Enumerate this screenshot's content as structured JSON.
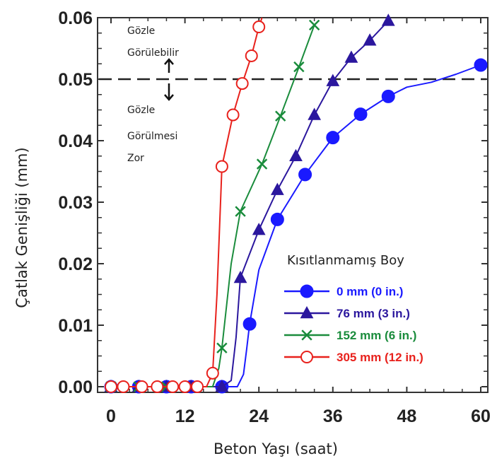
{
  "chart_data": {
    "type": "line",
    "xlabel": "Beton Yaşı (saat)",
    "ylabel": "Çatlak Genişliği (mm)",
    "xlim": [
      0,
      60
    ],
    "ylim": [
      0,
      0.06
    ],
    "xticks": [
      0,
      12,
      24,
      36,
      48,
      60
    ],
    "yticks": [
      0.0,
      0.01,
      0.02,
      0.03,
      0.04,
      0.05,
      0.06
    ],
    "xtick_labels": [
      "0",
      "12",
      "24",
      "36",
      "48",
      "60"
    ],
    "ytick_labels": [
      "0.00",
      "0.01",
      "0.02",
      "0.03",
      "0.04",
      "0.05",
      "0.06"
    ],
    "threshold": {
      "y": 0.05,
      "style": "dashed"
    },
    "annotations": {
      "above": [
        "Gözle",
        "Görülebilir"
      ],
      "below": [
        "Gözle",
        "Görülmesi",
        "Zor"
      ]
    },
    "legend": {
      "title": "Kısıtlanmamış Boy",
      "placement": "bottom-right"
    },
    "series": [
      {
        "name": "0 mm (0 in.)",
        "color": "#1a1aff",
        "marker": "circle-filled",
        "markers": [
          [
            0,
            0
          ],
          [
            4.5,
            0
          ],
          [
            9,
            0
          ],
          [
            13,
            0
          ],
          [
            18,
            0
          ],
          [
            22.5,
            0.0102
          ],
          [
            27,
            0.0272
          ],
          [
            31.5,
            0.0345
          ],
          [
            36,
            0.0405
          ],
          [
            40.5,
            0.0443
          ],
          [
            45,
            0.0472
          ],
          [
            60,
            0.0523
          ]
        ],
        "curve": [
          [
            0,
            0
          ],
          [
            18,
            0
          ],
          [
            20.5,
            0
          ],
          [
            21.5,
            0.002
          ],
          [
            22,
            0.006
          ],
          [
            22.5,
            0.0102
          ],
          [
            24,
            0.019
          ],
          [
            27,
            0.0272
          ],
          [
            31.5,
            0.0345
          ],
          [
            36,
            0.0405
          ],
          [
            40.5,
            0.0443
          ],
          [
            45,
            0.0472
          ],
          [
            48,
            0.0487
          ],
          [
            52,
            0.0495
          ],
          [
            56,
            0.0508
          ],
          [
            60,
            0.0523
          ]
        ]
      },
      {
        "name": "76 mm (3 in.)",
        "color": "#2b179e",
        "marker": "triangle-filled",
        "markers": [
          [
            0,
            0
          ],
          [
            4.5,
            0
          ],
          [
            9,
            0
          ],
          [
            13,
            0
          ],
          [
            18,
            0
          ],
          [
            21,
            0.0177
          ],
          [
            24,
            0.0255
          ],
          [
            27,
            0.032
          ],
          [
            30,
            0.0375
          ],
          [
            33,
            0.0442
          ],
          [
            36,
            0.0497
          ],
          [
            39,
            0.0535
          ],
          [
            42,
            0.0563
          ],
          [
            45,
            0.0595
          ]
        ],
        "curve": [
          [
            0,
            0
          ],
          [
            18,
            0
          ],
          [
            19.5,
            0.001
          ],
          [
            20.3,
            0.008
          ],
          [
            21,
            0.0177
          ],
          [
            24,
            0.0255
          ],
          [
            27,
            0.032
          ],
          [
            30,
            0.0375
          ],
          [
            33,
            0.0442
          ],
          [
            36,
            0.0497
          ],
          [
            39,
            0.0535
          ],
          [
            42,
            0.0563
          ],
          [
            45,
            0.0595
          ]
        ]
      },
      {
        "name": "152 mm (6 in.)",
        "color": "#1a8c3c",
        "marker": "x",
        "markers": [
          [
            0,
            0
          ],
          [
            4.5,
            0
          ],
          [
            9,
            0
          ],
          [
            13,
            0
          ],
          [
            18,
            0.0063
          ],
          [
            21,
            0.0285
          ],
          [
            24.5,
            0.0362
          ],
          [
            27.5,
            0.044
          ],
          [
            30.5,
            0.052
          ],
          [
            33,
            0.0588
          ]
        ],
        "curve": [
          [
            0,
            0
          ],
          [
            16.5,
            0
          ],
          [
            17.5,
            0.003
          ],
          [
            18,
            0.0063
          ],
          [
            19.5,
            0.02
          ],
          [
            21,
            0.0285
          ],
          [
            24.5,
            0.0362
          ],
          [
            27.5,
            0.044
          ],
          [
            30.5,
            0.052
          ],
          [
            33,
            0.0588
          ]
        ]
      },
      {
        "name": "305 mm (12 in.)",
        "color": "#e8211c",
        "marker": "circle-open",
        "markers": [
          [
            0,
            0
          ],
          [
            2,
            0
          ],
          [
            5,
            0
          ],
          [
            7.5,
            0
          ],
          [
            10,
            0
          ],
          [
            12,
            0
          ],
          [
            14,
            0
          ],
          [
            16.5,
            0.0022
          ],
          [
            18,
            0.0358
          ],
          [
            19.8,
            0.0442
          ],
          [
            21.3,
            0.0493
          ],
          [
            22.8,
            0.0538
          ],
          [
            24,
            0.0585
          ]
        ],
        "curve": [
          [
            0,
            0
          ],
          [
            15.5,
            0
          ],
          [
            16.5,
            0.0022
          ],
          [
            17.2,
            0.015
          ],
          [
            18,
            0.0358
          ],
          [
            19.8,
            0.0442
          ],
          [
            21.3,
            0.0493
          ],
          [
            22.8,
            0.0538
          ],
          [
            24,
            0.0585
          ],
          [
            24.5,
            0.06
          ]
        ]
      }
    ]
  }
}
